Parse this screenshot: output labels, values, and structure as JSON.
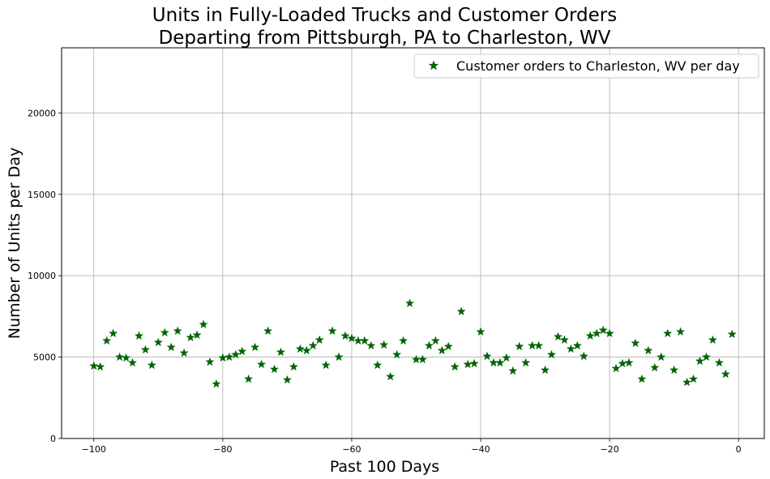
{
  "chart_data": {
    "type": "scatter",
    "title_lines": [
      "Units in Fully-Loaded Trucks and Customer Orders",
      "Departing from Pittsburgh, PA to Charleston, WV"
    ],
    "xlabel": "Past 100 Days",
    "ylabel": "Number of Units per Day",
    "xlim": [
      -105,
      4
    ],
    "ylim": [
      0,
      24000
    ],
    "xticks": [
      -100,
      -80,
      -60,
      -40,
      -20,
      0
    ],
    "xtick_labels": [
      "−100",
      "−80",
      "−60",
      "−40",
      "−20",
      "0"
    ],
    "yticks": [
      0,
      5000,
      10000,
      15000,
      20000
    ],
    "ytick_labels": [
      "0",
      "5000",
      "10000",
      "15000",
      "20000"
    ],
    "grid": true,
    "legend_position": "top-right",
    "marker": "star",
    "series": [
      {
        "name": "Customer orders to Charleston, WV per day",
        "color": "#006400",
        "x": [
          -100,
          -99,
          -98,
          -97,
          -96,
          -95,
          -94,
          -93,
          -92,
          -91,
          -90,
          -89,
          -88,
          -87,
          -86,
          -85,
          -84,
          -83,
          -82,
          -81,
          -80,
          -79,
          -78,
          -77,
          -76,
          -75,
          -74,
          -73,
          -72,
          -71,
          -70,
          -69,
          -68,
          -67,
          -66,
          -65,
          -64,
          -63,
          -62,
          -61,
          -60,
          -59,
          -58,
          -57,
          -56,
          -55,
          -54,
          -53,
          -52,
          -51,
          -50,
          -49,
          -48,
          -47,
          -46,
          -45,
          -44,
          -43,
          -42,
          -41,
          -40,
          -39,
          -38,
          -37,
          -36,
          -35,
          -34,
          -33,
          -32,
          -31,
          -30,
          -29,
          -28,
          -27,
          -26,
          -25,
          -24,
          -23,
          -22,
          -21,
          -20,
          -19,
          -18,
          -17,
          -16,
          -15,
          -14,
          -13,
          -12,
          -11,
          -10,
          -9,
          -8,
          -7,
          -6,
          -5,
          -4,
          -3,
          -2,
          -1
        ],
        "y": [
          4450,
          4400,
          6000,
          6450,
          5000,
          4950,
          4650,
          6300,
          5450,
          4500,
          5900,
          6500,
          5600,
          6600,
          5250,
          6200,
          6350,
          7000,
          4700,
          3350,
          4950,
          5000,
          5150,
          5350,
          3650,
          5600,
          4550,
          6600,
          4250,
          5300,
          3600,
          4400,
          5500,
          5400,
          5700,
          6050,
          4500,
          6600,
          5000,
          6300,
          6150,
          6000,
          6000,
          5700,
          4500,
          5750,
          3800,
          5150,
          6000,
          8300,
          4850,
          4850,
          5700,
          6000,
          5400,
          5650,
          4400,
          7800,
          4550,
          4600,
          6550,
          5050,
          4650,
          4650,
          4950,
          4150,
          5650,
          4650,
          5700,
          5700,
          4200,
          5150,
          6250,
          6050,
          5500,
          5700,
          5050,
          6300,
          6450,
          6650,
          6450,
          4300,
          4600,
          4650,
          5850,
          3650,
          5400,
          4350,
          5000,
          6450,
          4200,
          6550,
          3450,
          3650,
          4750,
          5000,
          6050,
          4650,
          3950,
          6400
        ]
      }
    ]
  }
}
